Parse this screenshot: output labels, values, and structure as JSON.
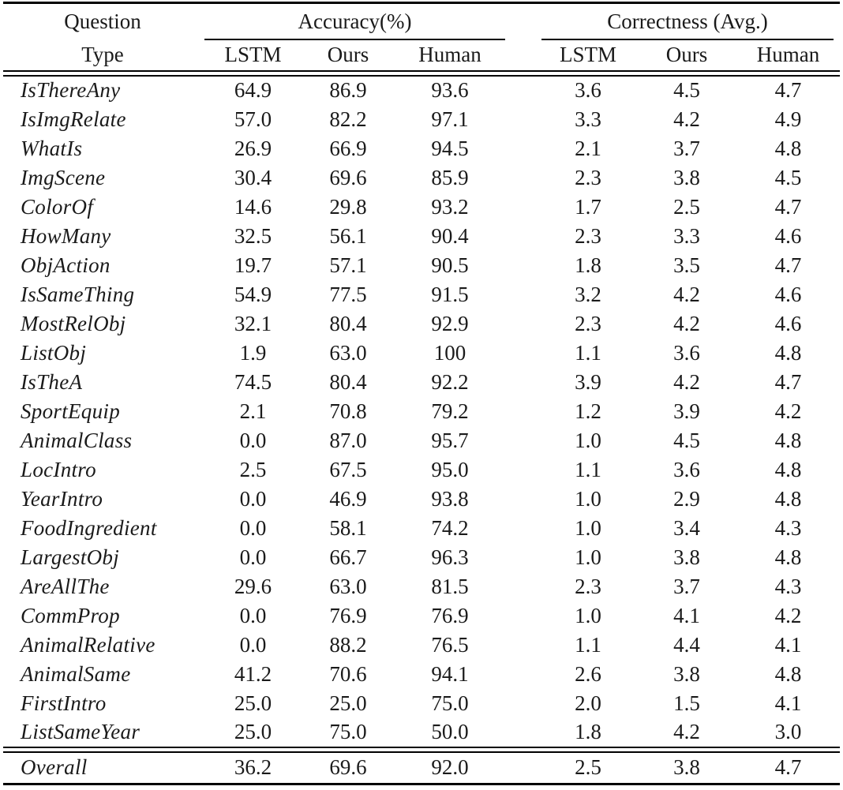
{
  "colors": {
    "background": "#ffffff",
    "text": "#1a1a1a",
    "rule": "#000000"
  },
  "table": {
    "row_header": {
      "line1": "Question",
      "line2": "Type"
    },
    "groups": [
      {
        "label": "Accuracy(%)",
        "columns": [
          "LSTM",
          "Ours",
          "Human"
        ]
      },
      {
        "label": "Correctness (Avg.)",
        "columns": [
          "LSTM",
          "Ours",
          "Human"
        ]
      }
    ],
    "rows": [
      {
        "type": "IsThereAny",
        "accuracy": [
          "64.9",
          "86.9",
          "93.6"
        ],
        "correctness": [
          "3.6",
          "4.5",
          "4.7"
        ]
      },
      {
        "type": "IsImgRelate",
        "accuracy": [
          "57.0",
          "82.2",
          "97.1"
        ],
        "correctness": [
          "3.3",
          "4.2",
          "4.9"
        ]
      },
      {
        "type": "WhatIs",
        "accuracy": [
          "26.9",
          "66.9",
          "94.5"
        ],
        "correctness": [
          "2.1",
          "3.7",
          "4.8"
        ]
      },
      {
        "type": "ImgScene",
        "accuracy": [
          "30.4",
          "69.6",
          "85.9"
        ],
        "correctness": [
          "2.3",
          "3.8",
          "4.5"
        ]
      },
      {
        "type": "ColorOf",
        "accuracy": [
          "14.6",
          "29.8",
          "93.2"
        ],
        "correctness": [
          "1.7",
          "2.5",
          "4.7"
        ]
      },
      {
        "type": "HowMany",
        "accuracy": [
          "32.5",
          "56.1",
          "90.4"
        ],
        "correctness": [
          "2.3",
          "3.3",
          "4.6"
        ]
      },
      {
        "type": "ObjAction",
        "accuracy": [
          "19.7",
          "57.1",
          "90.5"
        ],
        "correctness": [
          "1.8",
          "3.5",
          "4.7"
        ]
      },
      {
        "type": "IsSameThing",
        "accuracy": [
          "54.9",
          "77.5",
          "91.5"
        ],
        "correctness": [
          "3.2",
          "4.2",
          "4.6"
        ]
      },
      {
        "type": "MostRelObj",
        "accuracy": [
          "32.1",
          "80.4",
          "92.9"
        ],
        "correctness": [
          "2.3",
          "4.2",
          "4.6"
        ]
      },
      {
        "type": "ListObj",
        "accuracy": [
          "1.9",
          "63.0",
          "100"
        ],
        "correctness": [
          "1.1",
          "3.6",
          "4.8"
        ]
      },
      {
        "type": "IsTheA",
        "accuracy": [
          "74.5",
          "80.4",
          "92.2"
        ],
        "correctness": [
          "3.9",
          "4.2",
          "4.7"
        ]
      },
      {
        "type": "SportEquip",
        "accuracy": [
          "2.1",
          "70.8",
          "79.2"
        ],
        "correctness": [
          "1.2",
          "3.9",
          "4.2"
        ]
      },
      {
        "type": "AnimalClass",
        "accuracy": [
          "0.0",
          "87.0",
          "95.7"
        ],
        "correctness": [
          "1.0",
          "4.5",
          "4.8"
        ]
      },
      {
        "type": "LocIntro",
        "accuracy": [
          "2.5",
          "67.5",
          "95.0"
        ],
        "correctness": [
          "1.1",
          "3.6",
          "4.8"
        ]
      },
      {
        "type": "YearIntro",
        "accuracy": [
          "0.0",
          "46.9",
          "93.8"
        ],
        "correctness": [
          "1.0",
          "2.9",
          "4.8"
        ]
      },
      {
        "type": "FoodIngredient",
        "accuracy": [
          "0.0",
          "58.1",
          "74.2"
        ],
        "correctness": [
          "1.0",
          "3.4",
          "4.3"
        ]
      },
      {
        "type": "LargestObj",
        "accuracy": [
          "0.0",
          "66.7",
          "96.3"
        ],
        "correctness": [
          "1.0",
          "3.8",
          "4.8"
        ]
      },
      {
        "type": "AreAllThe",
        "accuracy": [
          "29.6",
          "63.0",
          "81.5"
        ],
        "correctness": [
          "2.3",
          "3.7",
          "4.3"
        ]
      },
      {
        "type": "CommProp",
        "accuracy": [
          "0.0",
          "76.9",
          "76.9"
        ],
        "correctness": [
          "1.0",
          "4.1",
          "4.2"
        ]
      },
      {
        "type": "AnimalRelative",
        "accuracy": [
          "0.0",
          "88.2",
          "76.5"
        ],
        "correctness": [
          "1.1",
          "4.4",
          "4.1"
        ]
      },
      {
        "type": "AnimalSame",
        "accuracy": [
          "41.2",
          "70.6",
          "94.1"
        ],
        "correctness": [
          "2.6",
          "3.8",
          "4.8"
        ]
      },
      {
        "type": "FirstIntro",
        "accuracy": [
          "25.0",
          "25.0",
          "75.0"
        ],
        "correctness": [
          "2.0",
          "1.5",
          "4.1"
        ]
      },
      {
        "type": "ListSameYear",
        "accuracy": [
          "25.0",
          "75.0",
          "50.0"
        ],
        "correctness": [
          "1.8",
          "4.2",
          "3.0"
        ]
      }
    ],
    "overall_row": {
      "type": "Overall",
      "accuracy": [
        "36.2",
        "69.6",
        "92.0"
      ],
      "correctness": [
        "2.5",
        "3.8",
        "4.7"
      ]
    }
  }
}
